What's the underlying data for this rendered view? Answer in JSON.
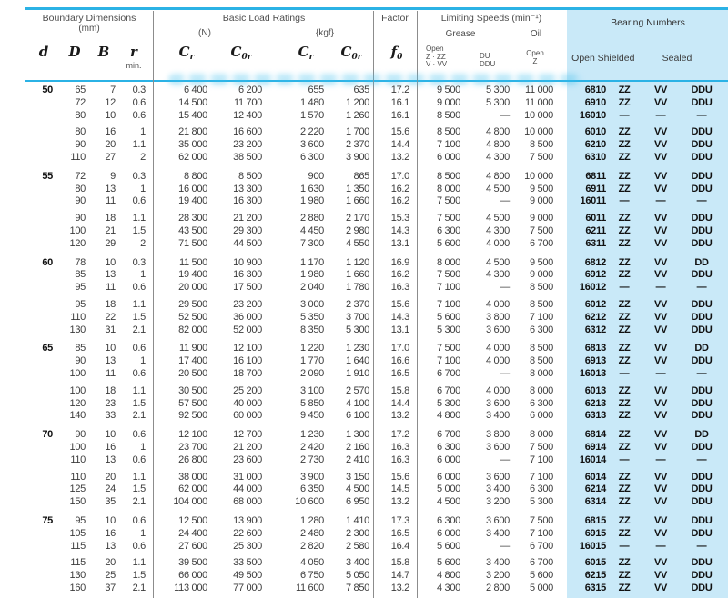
{
  "colors": {
    "accent": "#2bb2e5",
    "panel": "#c9e9f8",
    "divider": "#8c8c8c",
    "text": "#3c3c3c"
  },
  "table": {
    "header": {
      "boundary": {
        "title": "Boundary Dimensions",
        "unit": "(mm)",
        "col_d": "d",
        "col_D": "D",
        "col_B": "B",
        "col_r": "r",
        "r_min": "min."
      },
      "load": {
        "title": "Basic Load Ratings",
        "unit_n": "(N)",
        "unit_kgf": "{kgf}",
        "c_base": "C",
        "sub_r": "r",
        "sub_0r": "0r"
      },
      "factor": {
        "title": "Factor",
        "f_base": "f",
        "f_sub": "0"
      },
      "speeds": {
        "title": "Limiting Speeds (min⁻¹)",
        "grease": "Grease",
        "oil": "Oil",
        "grease_open_1": "Open",
        "grease_open_2": "Z · ZZ",
        "grease_open_3": "V · VV",
        "grease_du_1": "DU",
        "grease_du_2": "DDU",
        "oil_open_1": "Open",
        "oil_open_2": "Z"
      },
      "bearing": {
        "title": "Bearing Numbers",
        "col_open": "Open",
        "col_shielded": "Shielded",
        "col_sealed": "Sealed"
      }
    },
    "groups": [
      {
        "rows": [
          [
            "50",
            "65",
            "7",
            "0.3",
            "6 400",
            "6 200",
            "655",
            "635",
            "17.2",
            "9 500",
            "5 300",
            "11 000",
            "6810",
            "ZZ",
            "VV",
            "DDU"
          ],
          [
            "",
            "72",
            "12",
            "0.6",
            "14 500",
            "11 700",
            "1 480",
            "1 200",
            "16.1",
            "9 000",
            "5 300",
            "11 000",
            "6910",
            "ZZ",
            "VV",
            "DDU"
          ],
          [
            "",
            "80",
            "10",
            "0.6",
            "15 400",
            "12 400",
            "1 570",
            "1 260",
            "16.1",
            "8 500",
            "—",
            "10 000",
            "16010",
            "—",
            "—",
            "—"
          ],
          [
            "",
            "80",
            "16",
            "1",
            "21 800",
            "16 600",
            "2 220",
            "1 700",
            "15.6",
            "8 500",
            "4 800",
            "10 000",
            "6010",
            "ZZ",
            "VV",
            "DDU"
          ],
          [
            "",
            "90",
            "20",
            "1.1",
            "35 000",
            "23 200",
            "3 600",
            "2 370",
            "14.4",
            "7 100",
            "4 800",
            "8 500",
            "6210",
            "ZZ",
            "VV",
            "DDU"
          ],
          [
            "",
            "110",
            "27",
            "2",
            "62 000",
            "38 500",
            "6 300",
            "3 900",
            "13.2",
            "6 000",
            "4 300",
            "7 500",
            "6310",
            "ZZ",
            "VV",
            "DDU"
          ]
        ]
      },
      {
        "rows": [
          [
            "55",
            "72",
            "9",
            "0.3",
            "8 800",
            "8 500",
            "900",
            "865",
            "17.0",
            "8 500",
            "4 800",
            "10 000",
            "6811",
            "ZZ",
            "VV",
            "DDU"
          ],
          [
            "",
            "80",
            "13",
            "1",
            "16 000",
            "13 300",
            "1 630",
            "1 350",
            "16.2",
            "8 000",
            "4 500",
            "9 500",
            "6911",
            "ZZ",
            "VV",
            "DDU"
          ],
          [
            "",
            "90",
            "11",
            "0.6",
            "19 400",
            "16 300",
            "1 980",
            "1 660",
            "16.2",
            "7 500",
            "—",
            "9 000",
            "16011",
            "—",
            "—",
            "—"
          ],
          [
            "",
            "90",
            "18",
            "1.1",
            "28 300",
            "21 200",
            "2 880",
            "2 170",
            "15.3",
            "7 500",
            "4 500",
            "9 000",
            "6011",
            "ZZ",
            "VV",
            "DDU"
          ],
          [
            "",
            "100",
            "21",
            "1.5",
            "43 500",
            "29 300",
            "4 450",
            "2 980",
            "14.3",
            "6 300",
            "4 300",
            "7 500",
            "6211",
            "ZZ",
            "VV",
            "DDU"
          ],
          [
            "",
            "120",
            "29",
            "2",
            "71 500",
            "44 500",
            "7 300",
            "4 550",
            "13.1",
            "5 600",
            "4 000",
            "6 700",
            "6311",
            "ZZ",
            "VV",
            "DDU"
          ]
        ]
      },
      {
        "rows": [
          [
            "60",
            "78",
            "10",
            "0.3",
            "11 500",
            "10 900",
            "1 170",
            "1 120",
            "16.9",
            "8 000",
            "4 500",
            "9 500",
            "6812",
            "ZZ",
            "VV",
            "DD"
          ],
          [
            "",
            "85",
            "13",
            "1",
            "19 400",
            "16 300",
            "1 980",
            "1 660",
            "16.2",
            "7 500",
            "4 300",
            "9 000",
            "6912",
            "ZZ",
            "VV",
            "DDU"
          ],
          [
            "",
            "95",
            "11",
            "0.6",
            "20 000",
            "17 500",
            "2 040",
            "1 780",
            "16.3",
            "7 100",
            "—",
            "8 500",
            "16012",
            "—",
            "—",
            "—"
          ],
          [
            "",
            "95",
            "18",
            "1.1",
            "29 500",
            "23 200",
            "3 000",
            "2 370",
            "15.6",
            "7 100",
            "4 000",
            "8 500",
            "6012",
            "ZZ",
            "VV",
            "DDU"
          ],
          [
            "",
            "110",
            "22",
            "1.5",
            "52 500",
            "36 000",
            "5 350",
            "3 700",
            "14.3",
            "5 600",
            "3 800",
            "7 100",
            "6212",
            "ZZ",
            "VV",
            "DDU"
          ],
          [
            "",
            "130",
            "31",
            "2.1",
            "82 000",
            "52 000",
            "8 350",
            "5 300",
            "13.1",
            "5 300",
            "3 600",
            "6 300",
            "6312",
            "ZZ",
            "VV",
            "DDU"
          ]
        ]
      },
      {
        "rows": [
          [
            "65",
            "85",
            "10",
            "0.6",
            "11 900",
            "12 100",
            "1 220",
            "1 230",
            "17.0",
            "7 500",
            "4 000",
            "8 500",
            "6813",
            "ZZ",
            "VV",
            "DD"
          ],
          [
            "",
            "90",
            "13",
            "1",
            "17 400",
            "16 100",
            "1 770",
            "1 640",
            "16.6",
            "7 100",
            "4 000",
            "8 500",
            "6913",
            "ZZ",
            "VV",
            "DDU"
          ],
          [
            "",
            "100",
            "11",
            "0.6",
            "20 500",
            "18 700",
            "2 090",
            "1 910",
            "16.5",
            "6 700",
            "—",
            "8 000",
            "16013",
            "—",
            "—",
            "—"
          ],
          [
            "",
            "100",
            "18",
            "1.1",
            "30 500",
            "25 200",
            "3 100",
            "2 570",
            "15.8",
            "6 700",
            "4 000",
            "8 000",
            "6013",
            "ZZ",
            "VV",
            "DDU"
          ],
          [
            "",
            "120",
            "23",
            "1.5",
            "57 500",
            "40 000",
            "5 850",
            "4 100",
            "14.4",
            "5 300",
            "3 600",
            "6 300",
            "6213",
            "ZZ",
            "VV",
            "DDU"
          ],
          [
            "",
            "140",
            "33",
            "2.1",
            "92 500",
            "60 000",
            "9 450",
            "6 100",
            "13.2",
            "4 800",
            "3 400",
            "6 000",
            "6313",
            "ZZ",
            "VV",
            "DDU"
          ]
        ]
      },
      {
        "rows": [
          [
            "70",
            "90",
            "10",
            "0.6",
            "12 100",
            "12 700",
            "1 230",
            "1 300",
            "17.2",
            "6 700",
            "3 800",
            "8 000",
            "6814",
            "ZZ",
            "VV",
            "DD"
          ],
          [
            "",
            "100",
            "16",
            "1",
            "23 700",
            "21 200",
            "2 420",
            "2 160",
            "16.3",
            "6 300",
            "3 600",
            "7 500",
            "6914",
            "ZZ",
            "VV",
            "DDU"
          ],
          [
            "",
            "110",
            "13",
            "0.6",
            "26 800",
            "23 600",
            "2 730",
            "2 410",
            "16.3",
            "6 000",
            "—",
            "7 100",
            "16014",
            "—",
            "—",
            "—"
          ],
          [
            "",
            "110",
            "20",
            "1.1",
            "38 000",
            "31 000",
            "3 900",
            "3 150",
            "15.6",
            "6 000",
            "3 600",
            "7 100",
            "6014",
            "ZZ",
            "VV",
            "DDU"
          ],
          [
            "",
            "125",
            "24",
            "1.5",
            "62 000",
            "44 000",
            "6 350",
            "4 500",
            "14.5",
            "5 000",
            "3 400",
            "6 300",
            "6214",
            "ZZ",
            "VV",
            "DDU"
          ],
          [
            "",
            "150",
            "35",
            "2.1",
            "104 000",
            "68 000",
            "10 600",
            "6 950",
            "13.2",
            "4 500",
            "3 200",
            "5 300",
            "6314",
            "ZZ",
            "VV",
            "DDU"
          ]
        ]
      },
      {
        "rows": [
          [
            "75",
            "95",
            "10",
            "0.6",
            "12 500",
            "13 900",
            "1 280",
            "1 410",
            "17.3",
            "6 300",
            "3 600",
            "7 500",
            "6815",
            "ZZ",
            "VV",
            "DDU"
          ],
          [
            "",
            "105",
            "16",
            "1",
            "24 400",
            "22 600",
            "2 480",
            "2 300",
            "16.5",
            "6 000",
            "3 400",
            "7 100",
            "6915",
            "ZZ",
            "VV",
            "DDU"
          ],
          [
            "",
            "115",
            "13",
            "0.6",
            "27 600",
            "25 300",
            "2 820",
            "2 580",
            "16.4",
            "5 600",
            "—",
            "6 700",
            "16015",
            "—",
            "—",
            "—"
          ],
          [
            "",
            "115",
            "20",
            "1.1",
            "39 500",
            "33 500",
            "4 050",
            "3 400",
            "15.8",
            "5 600",
            "3 400",
            "6 700",
            "6015",
            "ZZ",
            "VV",
            "DDU"
          ],
          [
            "",
            "130",
            "25",
            "1.5",
            "66 000",
            "49 500",
            "6 750",
            "5 050",
            "14.7",
            "4 800",
            "3 200",
            "5 600",
            "6215",
            "ZZ",
            "VV",
            "DDU"
          ],
          [
            "",
            "160",
            "37",
            "2.1",
            "113 000",
            "77 000",
            "11 600",
            "7 850",
            "13.2",
            "4 300",
            "2 800",
            "5 000",
            "6315",
            "ZZ",
            "VV",
            "DDU"
          ]
        ]
      }
    ]
  }
}
